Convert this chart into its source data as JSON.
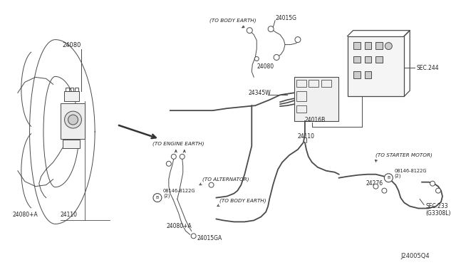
{
  "bg_color": "#ffffff",
  "line_color": "#4a4a4a",
  "text_color": "#222222",
  "diagram_id": "J24005Q4",
  "labels": {
    "24080_left": "24080",
    "24080_right": "24080",
    "24110_left": "24110",
    "24110_right": "24110",
    "24080A_left": "24080+A",
    "24080A_right": "24080+A",
    "24015G": "24015G",
    "24015GA": "24015GA",
    "24016B": "24016B",
    "24345W": "24345W",
    "24276": "24276",
    "sec244": "SEC.244",
    "sec233": "SEC.233\n(G3308L)",
    "bolt_left": "08146-8122G\n(2)",
    "bolt_right": "08146-8122G\n(2)",
    "to_body_earth_top": "(TO BODY EARTH)",
    "to_engine_earth": "(TO ENGINE EARTH)",
    "to_alternator": "(TO ALTERNATOR)",
    "to_body_earth_bot": "(TO BODY EARTH)",
    "to_starter_motor": "(TO STARTER MOTOR)"
  }
}
